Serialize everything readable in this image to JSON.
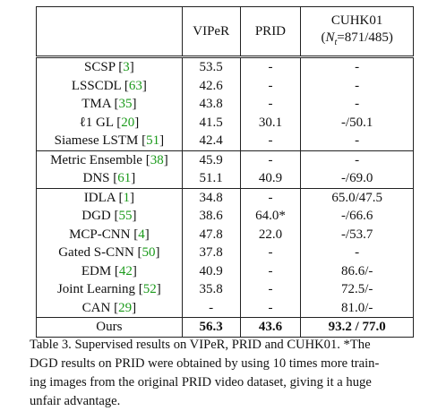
{
  "table": {
    "headers": {
      "method": "",
      "viper": "VIPeR",
      "prid": "PRID",
      "cuhk_line1": "CUHK01",
      "cuhk_line2_pre": "(",
      "cuhk_line2_var": "N",
      "cuhk_line2_sub": "t",
      "cuhk_line2_post": "=871/485)"
    },
    "rows": [
      {
        "name": "SCSP",
        "ref": "3",
        "viper": "53.5",
        "prid": "-",
        "cuhk": "-"
      },
      {
        "name": "LSSCDL",
        "ref": "63",
        "viper": "42.6",
        "prid": "-",
        "cuhk": "-"
      },
      {
        "name": "TMA",
        "ref": "35",
        "viper": "43.8",
        "prid": "-",
        "cuhk": "-"
      },
      {
        "name": "ℓ1 GL",
        "ref": "20",
        "viper": "41.5",
        "prid": "30.1",
        "cuhk": "-/50.1"
      },
      {
        "name": "Siamese LSTM",
        "ref": "51",
        "viper": "42.4",
        "prid": "-",
        "cuhk": "-"
      },
      {
        "name": "Metric Ensemble",
        "ref": "38",
        "viper": "45.9",
        "prid": "-",
        "cuhk": "-"
      },
      {
        "name": "DNS",
        "ref": "61",
        "viper": "51.1",
        "prid": "40.9",
        "cuhk": "-/69.0"
      },
      {
        "name": "IDLA",
        "ref": "1",
        "viper": "34.8",
        "prid": "-",
        "cuhk": "65.0/47.5"
      },
      {
        "name": "DGD",
        "ref": "55",
        "viper": "38.6",
        "prid": "64.0*",
        "cuhk": "-/66.6"
      },
      {
        "name": "MCP-CNN",
        "ref": "4",
        "viper": "47.8",
        "prid": "22.0",
        "cuhk": "-/53.7"
      },
      {
        "name": "Gated S-CNN",
        "ref": "50",
        "viper": "37.8",
        "prid": "-",
        "cuhk": "-"
      },
      {
        "name": "EDM",
        "ref": "42",
        "viper": "40.9",
        "prid": "-",
        "cuhk": "86.6/-"
      },
      {
        "name": "Joint Learning",
        "ref": "52",
        "viper": "35.8",
        "prid": "-",
        "cuhk": "72.5/-"
      },
      {
        "name": "CAN",
        "ref": "29",
        "viper": "-",
        "prid": "-",
        "cuhk": "81.0/-"
      },
      {
        "name": "Ours",
        "ref": "",
        "viper": "56.3",
        "prid": "43.6",
        "cuhk": "93.2 / 77.0"
      }
    ]
  },
  "caption": {
    "lines": [
      "Table 3. Supervised results on VIPeR, PRID and CUHK01. *The",
      "DGD results on PRID were obtained by using 10 times more train-",
      "ing images from the original PRID video dataset, giving it a huge",
      "unfair advantage."
    ]
  }
}
